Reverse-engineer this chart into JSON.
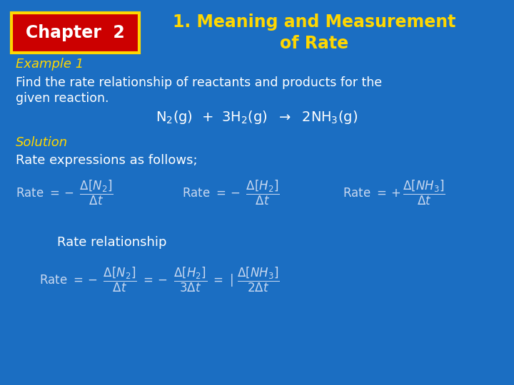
{
  "bg_color": "#1B6EC2",
  "title_text": "1. Meaning and Measurement\nof Rate",
  "title_color": "#FFD700",
  "chapter_box_bg": "#CC0000",
  "chapter_box_edge": "#FFD700",
  "chapter_text": "Chapter  2",
  "chapter_text_color": "#FFFFFF",
  "example_label": "Example 1",
  "italic_color": "#FFD700",
  "body_color": "#FFFFFF",
  "eq_color": "#C8D8F0",
  "solution_color": "#FFD700"
}
